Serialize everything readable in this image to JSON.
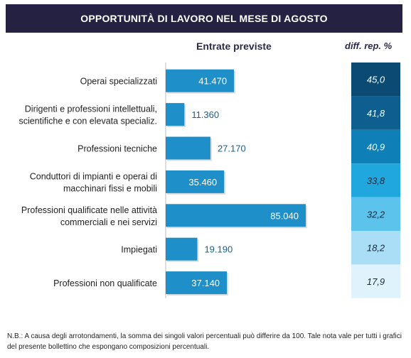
{
  "header": {
    "title": "OPPORTUNITÀ DI LAVORO NEL MESE DI AGOSTO"
  },
  "columns": {
    "entrate": "Entrate previste",
    "diff": "diff. rep. %"
  },
  "note": "N.B.: A causa degli arrotondamenti, la somma dei singoli valori percentuali può differire da 100. Tale nota vale per tutti i grafici del presente bollettino che espongano composizioni percentuali.",
  "chart_data": {
    "type": "bar",
    "orientation": "horizontal",
    "categories": [
      [
        "Operai specializzati"
      ],
      [
        "Dirigenti e professioni intellettuali,",
        "scientifiche e con elevata specializ."
      ],
      [
        "Professioni tecniche"
      ],
      [
        "Conduttori di impianti e operai di",
        "macchinari fissi e mobili"
      ],
      [
        "Professioni qualificate nelle attività",
        "commerciali e nei servizi"
      ],
      [
        "Impiegati"
      ],
      [
        "Professioni non qualificate"
      ]
    ],
    "values": [
      41470,
      11360,
      27170,
      35460,
      85040,
      19190,
      37140
    ],
    "value_labels": [
      "41.470",
      "11.360",
      "27.170",
      "35.460",
      "85.040",
      "19.190",
      "37.140"
    ],
    "diff_rep": [
      "45,0",
      "41,8",
      "40,9",
      "33,8",
      "32,2",
      "18,2",
      "17,9"
    ],
    "diff_colors": [
      "#0b4a72",
      "#0e5f8f",
      "#0f7fb8",
      "#20a7de",
      "#5cc4ec",
      "#a9def6",
      "#dff3fc"
    ],
    "diff_text_colors": [
      "#ffffff",
      "#ffffff",
      "#ffffff",
      "#1b2a3a",
      "#1b2a3a",
      "#1b2a3a",
      "#1b2a3a"
    ],
    "bar_color": "#1f8fc9",
    "xlim": [
      0,
      85040
    ]
  }
}
